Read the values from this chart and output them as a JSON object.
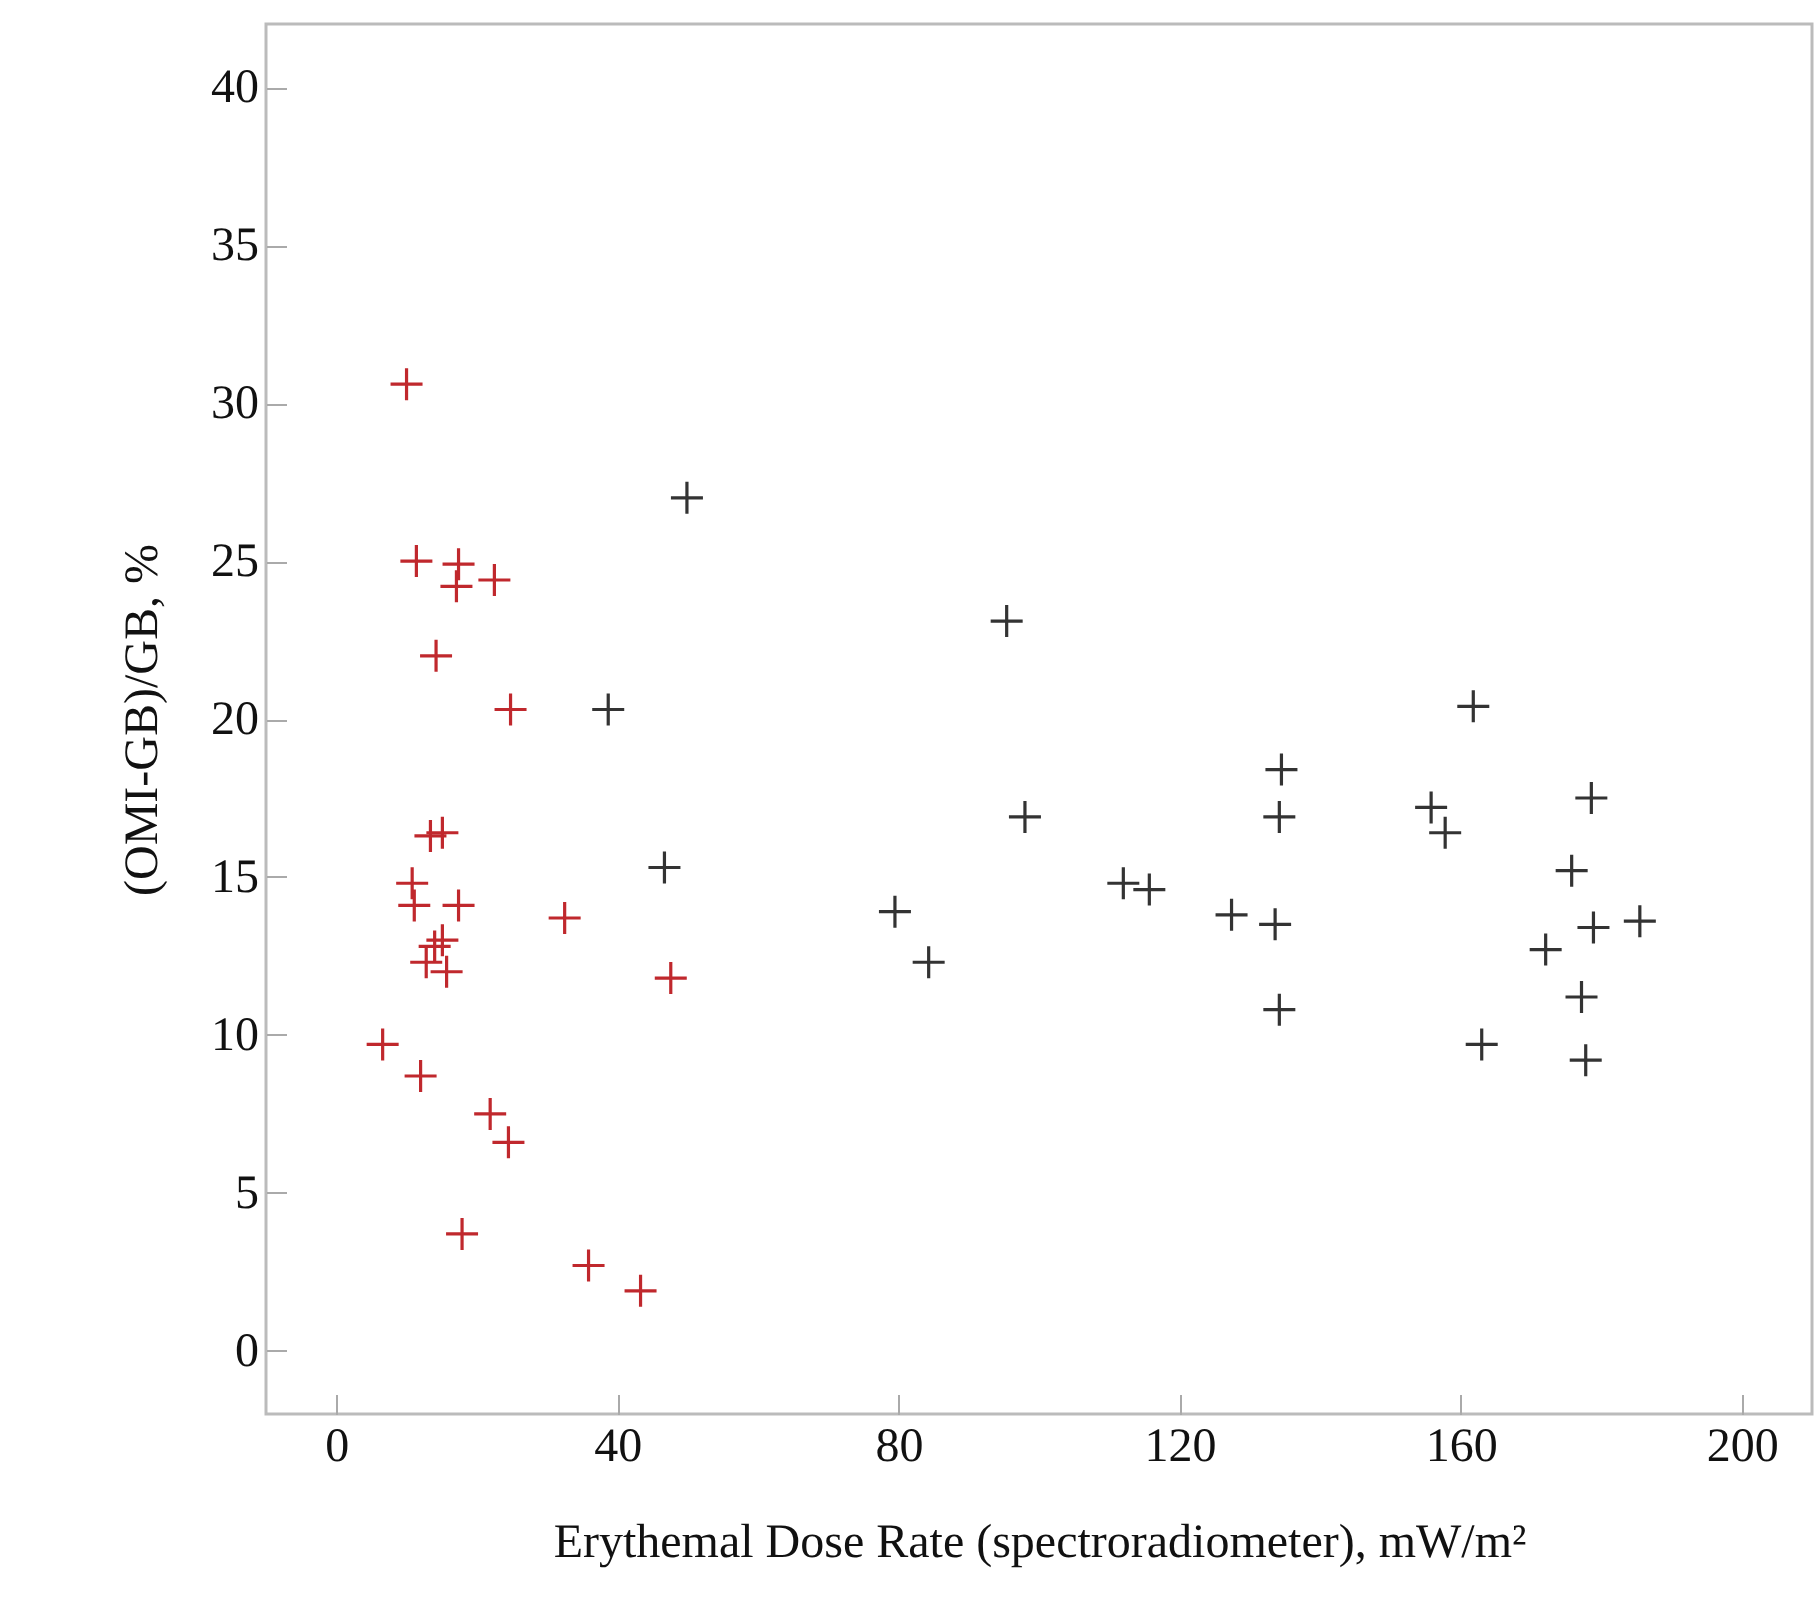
{
  "chart_data": {
    "type": "scatter",
    "xlabel": "Erythemal Dose Rate (spectroradiometer), mW/m²",
    "ylabel": "(OMI-GB)/GB, %",
    "xlim": [
      -10,
      210
    ],
    "xticks": [
      0,
      40,
      80,
      120,
      160,
      200
    ],
    "ylim": [
      -2,
      42
    ],
    "yticks": [
      0,
      5,
      10,
      15,
      20,
      25,
      30,
      35,
      40
    ],
    "marker": "cross",
    "series": [
      {
        "color": "#c0282d",
        "x": [
          10.0,
          11.4,
          17.4,
          17.1,
          22.5,
          14.2,
          24.8,
          13.4,
          15.1,
          10.8,
          11.1,
          17.4,
          32.5,
          15.1,
          14.0,
          12.8,
          15.7,
          47.6,
          6.6,
          12.0,
          21.9,
          24.5,
          17.9,
          35.9,
          43.3
        ],
        "values": [
          30.6,
          25.0,
          24.9,
          24.2,
          24.4,
          22.0,
          20.3,
          16.3,
          16.4,
          14.8,
          14.1,
          14.1,
          13.7,
          13.0,
          12.8,
          12.3,
          12.0,
          11.8,
          9.7,
          8.7,
          7.5,
          6.6,
          3.7,
          2.7,
          1.9
        ]
      },
      {
        "color": "#333333",
        "x": [
          49.9,
          38.7,
          46.7,
          95.4,
          98.0,
          79.5,
          84.3,
          112.0,
          115.7,
          127.4,
          134.5,
          134.2,
          133.6,
          134.2,
          155.8,
          157.8,
          161.8,
          178.6,
          175.8,
          178.9,
          172.1,
          185.5,
          177.2,
          163.0,
          177.8
        ],
        "values": [
          27.0,
          20.3,
          15.3,
          23.1,
          16.9,
          13.9,
          12.3,
          14.8,
          14.6,
          13.8,
          18.4,
          16.9,
          13.5,
          10.8,
          17.2,
          16.4,
          20.4,
          17.5,
          15.2,
          13.4,
          12.7,
          13.6,
          11.2,
          9.7,
          9.2
        ]
      }
    ]
  }
}
